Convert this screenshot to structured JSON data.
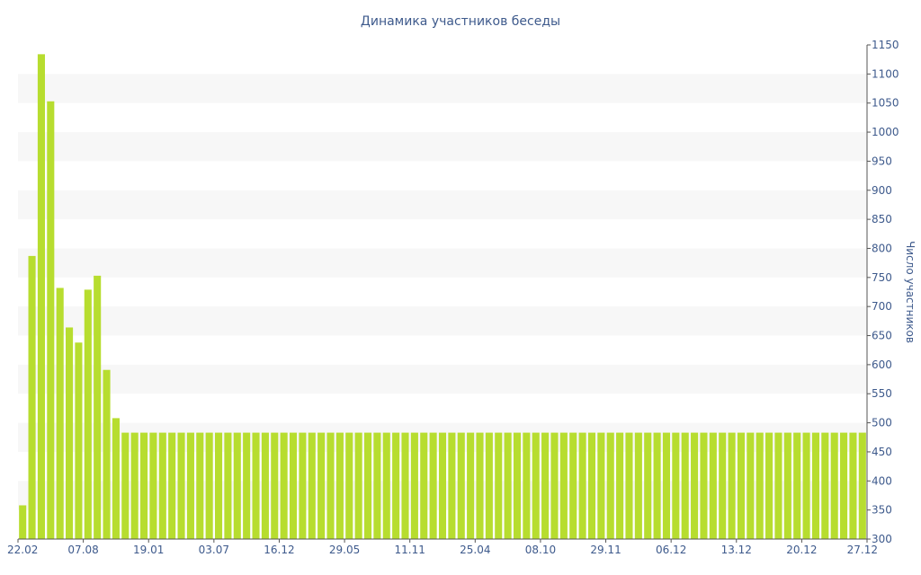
{
  "chart_data": {
    "type": "bar",
    "title": "Динамика участников беседы",
    "ylabel": "Число участников",
    "xlabel": "",
    "ylim": [
      300,
      1150
    ],
    "y_ticks": [
      300,
      350,
      400,
      450,
      500,
      550,
      600,
      650,
      700,
      750,
      800,
      850,
      900,
      950,
      1000,
      1050,
      1100,
      1150
    ],
    "x_tick_labels": [
      "22.02",
      "07.08",
      "19.01",
      "03.07",
      "16.12",
      "29.05",
      "11.11",
      "25.04",
      "08.10",
      "29.11",
      "06.12",
      "13.12",
      "20.12",
      "27.12"
    ],
    "y_axis_position": "right",
    "grid": "horizontal-bands",
    "bar_color": "#b7dd2f",
    "values": [
      358,
      787,
      1134,
      1053,
      732,
      664,
      638,
      729,
      753,
      591,
      508,
      483,
      483,
      483,
      483,
      483,
      483,
      483,
      483,
      483,
      483,
      483,
      483,
      483,
      483,
      483,
      483,
      483,
      483,
      483,
      483,
      483,
      483,
      483,
      483,
      483,
      483,
      483,
      483,
      483,
      483,
      483,
      483,
      483,
      483,
      483,
      483,
      483,
      483,
      483,
      483,
      483,
      483,
      483,
      483,
      483,
      483,
      483,
      483,
      483,
      483,
      483,
      483,
      483,
      483,
      483,
      483,
      483,
      483,
      483,
      483,
      483,
      483,
      483,
      483,
      483,
      483,
      483,
      483,
      483,
      483,
      483,
      483,
      483,
      483,
      483,
      483,
      483,
      483,
      483,
      483
    ]
  }
}
